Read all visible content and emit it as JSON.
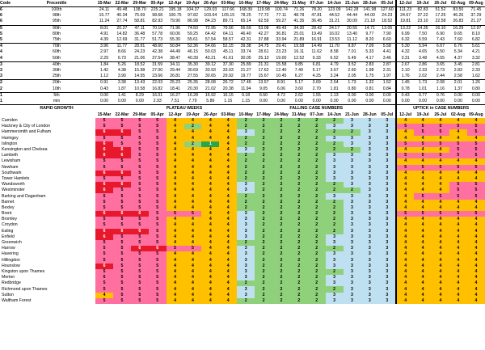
{
  "headers": {
    "code": "Code",
    "precentile": "Precentile",
    "dates": [
      "15-Mar",
      "22-Mar",
      "29-Mar",
      "05-Apr",
      "12-Apr",
      "19-Apr",
      "26-Apr",
      "03-May",
      "10-May",
      "17-May",
      "24-May",
      "31-May",
      "07-Jun",
      "14-Jun",
      "21-Jun",
      "28-Jun",
      "05-Jul",
      "12-Jul",
      "19-Jul",
      "26-Jul",
      "02-Aug",
      "09-Aug"
    ]
  },
  "percentile_rows": [
    {
      "code": "6",
      "label": "100th",
      "values": [
        "24.11",
        "49.48",
        "138.70",
        "225.21",
        "195.18",
        "104.37",
        "129.03",
        "117.66",
        "168.39",
        "119.98",
        "100.74",
        "71.26",
        "78.20",
        "123.09",
        "142.28",
        "141.98",
        "127.60",
        "111.23",
        "82.83",
        "51.52",
        "83.50",
        "71.45"
      ]
    },
    {
      "code": "6",
      "label": "98th",
      "values": [
        "15.77",
        "40.34",
        "75.69",
        "98.68",
        "100.75",
        "97.82",
        "103.64",
        "105.15",
        "78.25",
        "77.72",
        "77.11",
        "48.78",
        "47.81",
        "44.52",
        "44.44",
        "44.00",
        "24.23",
        "24.67",
        "37.22",
        "17.25",
        "46.26",
        "37.29"
      ]
    },
    {
      "code": "6",
      "label": "95th",
      "values": [
        "11.24",
        "27.74",
        "58.81",
        "82.93",
        "79.90",
        "86.98",
        "84.23",
        "89.71",
        "65.14",
        "62.59",
        "59.27",
        "41.35",
        "36.45",
        "31.21",
        "30.09",
        "21.18",
        "18.52",
        "19.81",
        "23.10",
        "22.58",
        "26.83",
        "21.27"
      ]
    },
    {
      "code": "5",
      "label": "90th",
      "values": [
        "8.01",
        "20.27",
        "47.11",
        "70.16",
        "71.96",
        "74.50",
        "72.95",
        "79.56",
        "56.69",
        "53.08",
        "49.43",
        "34.30",
        "28.42",
        "24.17",
        "20.55",
        "14.71",
        "13.05",
        "13.22",
        "14.35",
        "16.10",
        "16.29",
        "12.97"
      ]
    },
    {
      "code": "5",
      "label": "80th",
      "values": [
        "4.91",
        "14.82",
        "36.48",
        "57.78",
        "60.06",
        "59.25",
        "64.42",
        "64.11",
        "46.40",
        "42.27",
        "36.81",
        "25.01",
        "19.49",
        "16.02",
        "13.40",
        "9.77",
        "7.90",
        "6.99",
        "7.50",
        "6.90",
        "9.65",
        "8.10"
      ]
    },
    {
      "code": "5",
      "label": "75th",
      "values": [
        "4.39",
        "12.69",
        "31.77",
        "51.73",
        "55.30",
        "55.61",
        "57.54",
        "58.57",
        "42.31",
        "37.88",
        "33.94",
        "21.89",
        "16.91",
        "13.53",
        "11.12",
        "8.20",
        "6.60",
        "6.32",
        "6.59",
        "7.43",
        "7.60",
        "6.82"
      ]
    },
    {
      "code": "4",
      "label": "70th",
      "values": [
        "3.96",
        "11.77",
        "28.91",
        "48.60",
        "50.84",
        "52.36",
        "54.66",
        "52.15",
        "39.38",
        "34.75",
        "29.41",
        "19.58",
        "14.49",
        "11.70",
        "9.87",
        "7.09",
        "5.58",
        "5.30",
        "5.94",
        "6.67",
        "6.76",
        "5.61"
      ]
    },
    {
      "code": "4",
      "label": "60th",
      "values": [
        "2.97",
        "8.66",
        "24.23",
        "42.38",
        "44.49",
        "46.15",
        "50.03",
        "45.11",
        "33.74",
        "28.61",
        "23.23",
        "16.11",
        "11.62",
        "8.58",
        "7.01",
        "5.33",
        "4.41",
        "4.32",
        "4.65",
        "5.50",
        "5.34",
        "4.21"
      ]
    },
    {
      "code": "4",
      "label": "50th",
      "values": [
        "2.29",
        "6.73",
        "21.06",
        "37.54",
        "38.47",
        "40.39",
        "43.21",
        "41.61",
        "30.05",
        "25.13",
        "19.00",
        "12.52",
        "9.33",
        "6.52",
        "5.49",
        "4.17",
        "3.46",
        "3.31",
        "3.48",
        "4.55",
        "4.37",
        "3.32"
      ]
    },
    {
      "code": "3",
      "label": "40th",
      "values": [
        "1.84",
        "5.26",
        "18.52",
        "31.59",
        "34.11",
        "35.30",
        "39.12",
        "37.30",
        "25.89",
        "21.31",
        "15.58",
        "9.85",
        "6.81",
        "4.79",
        "3.52",
        "2.83",
        "2.87",
        "2.67",
        "2.86",
        "3.65",
        "3.45",
        "2.81"
      ]
    },
    {
      "code": "3",
      "label": "30th",
      "values": [
        "1.42",
        "4.38",
        "15.98",
        "27.00",
        "29.44",
        "30.69",
        "33.93",
        "33.03",
        "21.27",
        "17.62",
        "12.40",
        "7.49",
        "5.17",
        "3.67",
        "2.60",
        "1.98",
        "2.31",
        "2.10",
        "2.33",
        "2.73",
        "2.83",
        "2.33"
      ]
    },
    {
      "code": "3",
      "label": "25th",
      "values": [
        "1.12",
        "3.90",
        "14.55",
        "23.66",
        "26.81",
        "27.55",
        "30.65",
        "29.92",
        "19.77",
        "15.67",
        "10.45",
        "6.27",
        "4.25",
        "3.24",
        "2.05",
        "1.75",
        "1.97",
        "1.76",
        "2.02",
        "2.44",
        "2.58",
        "1.62"
      ]
    },
    {
      "code": "2",
      "label": "20th",
      "values": [
        "0.91",
        "3.38",
        "13.43",
        "22.03",
        "25.23",
        "25.35",
        "28.08",
        "26.72",
        "17.45",
        "13.57",
        "8.91",
        "5.17",
        "3.69",
        "2.54",
        "1.73",
        "1.32",
        "1.52",
        "1.45",
        "1.73",
        "2.08",
        "2.01",
        "1.26"
      ]
    },
    {
      "code": "2",
      "label": "10th",
      "values": [
        "0.43",
        "1.87",
        "10.58",
        "16.82",
        "18.41",
        "20.30",
        "21.02",
        "20.38",
        "11.94",
        "9.05",
        "6.06",
        "3.60",
        "2.70",
        "1.81",
        "0.80",
        "0.81",
        "0.84",
        "0.78",
        "1.01",
        "1.16",
        "1.37",
        "0.80"
      ]
    },
    {
      "code": "1",
      "label": "5th",
      "values": [
        "0.00",
        "1.41",
        "8.29",
        "16.01",
        "16.27",
        "16.28",
        "16.92",
        "16.15",
        "9.18",
        "6.50",
        "4.72",
        "2.62",
        "1.55",
        "1.13",
        "0.00",
        "0.00",
        "0.00",
        "0.43",
        "0.77",
        "0.76",
        "0.00",
        "0.00"
      ]
    },
    {
      "code": "1",
      "label": "min",
      "values": [
        "0.00",
        "0.00",
        "0.00",
        "2.93",
        "7.51",
        "7.79",
        "5.86",
        "1.15",
        "1.15",
        "0.00",
        "0.00",
        "0.00",
        "0.00",
        "0.00",
        "0.00",
        "0.00",
        "0.00",
        "0.00",
        "0.00",
        "0.00",
        "0.00",
        "0.00"
      ]
    }
  ],
  "section_labels": {
    "rapid": "RAPID GROWTH",
    "plateau": "PLATEAU WEEKS",
    "falling": "FALLING CASE NUMBERS",
    "uptick": "UPTICK in CASE NUMBERS"
  },
  "boroughs": [
    {
      "name": "Camden",
      "codes": [
        5,
        5,
        5,
        5,
        4,
        4,
        4,
        4,
        2,
        2,
        2,
        2,
        2,
        2,
        3,
        3,
        3,
        4,
        4,
        4,
        4,
        4
      ]
    },
    {
      "name": "Hackney & City of London",
      "codes": [
        5,
        5,
        5,
        5,
        4,
        2,
        4,
        4,
        2,
        2,
        2,
        2,
        2,
        3,
        3,
        3,
        3,
        5,
        5,
        5,
        5,
        5
      ]
    },
    {
      "name": "Hammersmith and Fulham",
      "codes": [
        6,
        6,
        5,
        5,
        4,
        4,
        4,
        4,
        3,
        2,
        2,
        2,
        2,
        2,
        2,
        3,
        3,
        4,
        5,
        5,
        4,
        5
      ]
    },
    {
      "name": "Haringey",
      "codes": [
        5,
        5,
        5,
        5,
        4,
        4,
        4,
        4,
        2,
        2,
        2,
        2,
        2,
        3,
        3,
        3,
        3,
        4,
        4,
        4,
        4,
        4
      ]
    },
    {
      "name": "Islington",
      "codes": [
        6,
        5,
        5,
        5,
        4,
        2,
        1,
        4,
        2,
        2,
        2,
        2,
        2,
        2,
        3,
        3,
        3,
        5,
        5,
        5,
        5,
        5
      ]
    },
    {
      "name": "Kensington and Chelsea",
      "codes": [
        6,
        6,
        5,
        5,
        4,
        4,
        4,
        4,
        3,
        2,
        2,
        2,
        2,
        2,
        2,
        3,
        3,
        4,
        4,
        4,
        5,
        5
      ]
    },
    {
      "name": "Lambeth",
      "codes": [
        6,
        6,
        5,
        5,
        4,
        4,
        4,
        4,
        2,
        2,
        2,
        2,
        2,
        3,
        3,
        3,
        3,
        5,
        5,
        5,
        5,
        5
      ]
    },
    {
      "name": "Lewisham",
      "codes": [
        5,
        5,
        5,
        5,
        4,
        4,
        4,
        4,
        2,
        2,
        2,
        2,
        2,
        3,
        3,
        3,
        3,
        4,
        4,
        4,
        4,
        4
      ]
    },
    {
      "name": "Newham",
      "codes": [
        5,
        5,
        5,
        5,
        4,
        4,
        4,
        4,
        2,
        2,
        2,
        2,
        2,
        3,
        3,
        3,
        3,
        5,
        5,
        5,
        5,
        5
      ]
    },
    {
      "name": "Southwark",
      "codes": [
        6,
        6,
        5,
        5,
        4,
        4,
        4,
        4,
        2,
        2,
        2,
        2,
        2,
        3,
        3,
        3,
        3,
        4,
        4,
        4,
        4,
        4
      ]
    },
    {
      "name": "Tower Hamlets",
      "codes": [
        5,
        5,
        5,
        5,
        4,
        4,
        4,
        4,
        2,
        2,
        2,
        2,
        2,
        3,
        3,
        3,
        3,
        4,
        4,
        4,
        4,
        4
      ]
    },
    {
      "name": "Wandsworth",
      "codes": [
        6,
        6,
        5,
        5,
        4,
        4,
        4,
        4,
        3,
        2,
        2,
        2,
        2,
        2,
        3,
        3,
        3,
        4,
        4,
        4,
        5,
        5
      ]
    },
    {
      "name": "Westminster",
      "codes": [
        6,
        5,
        5,
        5,
        4,
        4,
        4,
        4,
        3,
        2,
        2,
        2,
        2,
        2,
        2,
        3,
        3,
        4,
        4,
        4,
        5,
        5
      ]
    },
    {
      "name": "Barking and Dagenham",
      "codes": [
        5,
        5,
        5,
        5,
        4,
        4,
        4,
        4,
        2,
        2,
        2,
        2,
        2,
        3,
        3,
        3,
        3,
        4,
        5,
        5,
        5,
        5
      ]
    },
    {
      "name": "Barnet",
      "codes": [
        5,
        5,
        5,
        5,
        4,
        4,
        4,
        4,
        2,
        2,
        2,
        2,
        2,
        2,
        3,
        3,
        3,
        4,
        4,
        4,
        4,
        4
      ]
    },
    {
      "name": "Bexley",
      "codes": [
        5,
        5,
        5,
        5,
        4,
        4,
        4,
        4,
        2,
        2,
        2,
        2,
        2,
        2,
        3,
        3,
        3,
        4,
        4,
        4,
        4,
        4
      ]
    },
    {
      "name": "Brent",
      "codes": [
        6,
        6,
        6,
        5,
        5,
        5,
        4,
        4,
        3,
        2,
        2,
        2,
        2,
        2,
        3,
        3,
        3,
        5,
        5,
        5,
        5,
        5
      ]
    },
    {
      "name": "Bromley",
      "codes": [
        5,
        5,
        5,
        5,
        4,
        4,
        4,
        4,
        3,
        2,
        2,
        2,
        2,
        2,
        3,
        3,
        3,
        4,
        4,
        4,
        4,
        4
      ]
    },
    {
      "name": "Croydon",
      "codes": [
        5,
        5,
        5,
        5,
        4,
        4,
        4,
        4,
        3,
        2,
        2,
        2,
        2,
        2,
        3,
        3,
        3,
        4,
        4,
        4,
        4,
        4
      ]
    },
    {
      "name": "Ealing",
      "codes": [
        6,
        6,
        6,
        5,
        4,
        4,
        4,
        4,
        3,
        2,
        2,
        2,
        2,
        2,
        3,
        3,
        3,
        4,
        4,
        4,
        4,
        4
      ]
    },
    {
      "name": "Enfield",
      "codes": [
        6,
        5,
        5,
        5,
        4,
        4,
        4,
        4,
        3,
        2,
        2,
        2,
        2,
        3,
        3,
        3,
        3,
        4,
        4,
        4,
        4,
        4
      ]
    },
    {
      "name": "Greenwich",
      "codes": [
        5,
        5,
        5,
        5,
        4,
        4,
        4,
        4,
        2,
        2,
        2,
        2,
        2,
        3,
        3,
        3,
        3,
        4,
        4,
        4,
        4,
        4
      ]
    },
    {
      "name": "Harrow",
      "codes": [
        5,
        5,
        6,
        6,
        5,
        5,
        4,
        4,
        3,
        2,
        2,
        2,
        2,
        2,
        3,
        3,
        3,
        4,
        4,
        4,
        4,
        4
      ]
    },
    {
      "name": "Havering",
      "codes": [
        5,
        5,
        5,
        5,
        4,
        4,
        4,
        4,
        3,
        2,
        2,
        2,
        2,
        3,
        3,
        3,
        3,
        4,
        4,
        4,
        4,
        4
      ]
    },
    {
      "name": "Hillingdon",
      "codes": [
        5,
        5,
        5,
        5,
        4,
        4,
        4,
        4,
        3,
        2,
        2,
        2,
        2,
        3,
        3,
        3,
        3,
        4,
        4,
        4,
        4,
        4
      ]
    },
    {
      "name": "Hounslow",
      "codes": [
        6,
        5,
        5,
        5,
        4,
        4,
        4,
        4,
        3,
        2,
        2,
        2,
        2,
        3,
        3,
        3,
        3,
        4,
        4,
        4,
        4,
        4
      ]
    },
    {
      "name": "Kingston upon Thames",
      "codes": [
        5,
        5,
        5,
        5,
        4,
        4,
        4,
        4,
        3,
        2,
        2,
        2,
        2,
        2,
        3,
        3,
        3,
        4,
        4,
        4,
        4,
        4
      ]
    },
    {
      "name": "Merton",
      "codes": [
        5,
        5,
        5,
        5,
        4,
        4,
        4,
        4,
        3,
        2,
        2,
        2,
        2,
        3,
        3,
        3,
        3,
        4,
        4,
        4,
        4,
        4
      ]
    },
    {
      "name": "Redbridge",
      "codes": [
        5,
        5,
        5,
        5,
        4,
        4,
        4,
        4,
        2,
        2,
        2,
        2,
        2,
        3,
        3,
        3,
        3,
        4,
        4,
        4,
        4,
        4
      ]
    },
    {
      "name": "Richmond upon Thames",
      "codes": [
        5,
        5,
        5,
        5,
        4,
        4,
        4,
        4,
        3,
        2,
        2,
        2,
        2,
        2,
        3,
        3,
        3,
        4,
        4,
        4,
        4,
        4
      ]
    },
    {
      "name": "Sutton",
      "codes": [
        4,
        5,
        5,
        5,
        4,
        4,
        4,
        4,
        3,
        2,
        2,
        2,
        2,
        3,
        3,
        3,
        3,
        4,
        4,
        4,
        4,
        4
      ]
    },
    {
      "name": "Waltham Forest",
      "codes": [
        5,
        5,
        5,
        5,
        4,
        4,
        4,
        4,
        2,
        2,
        2,
        2,
        2,
        3,
        3,
        3,
        3,
        4,
        4,
        4,
        4,
        4
      ]
    }
  ],
  "colors": {
    "1": "#2aa64a",
    "2": "#8fd17a",
    "3": "#bfe0f0",
    "4": "#ffc000",
    "5": "#ff6fa0",
    "6": "#e8182c"
  }
}
